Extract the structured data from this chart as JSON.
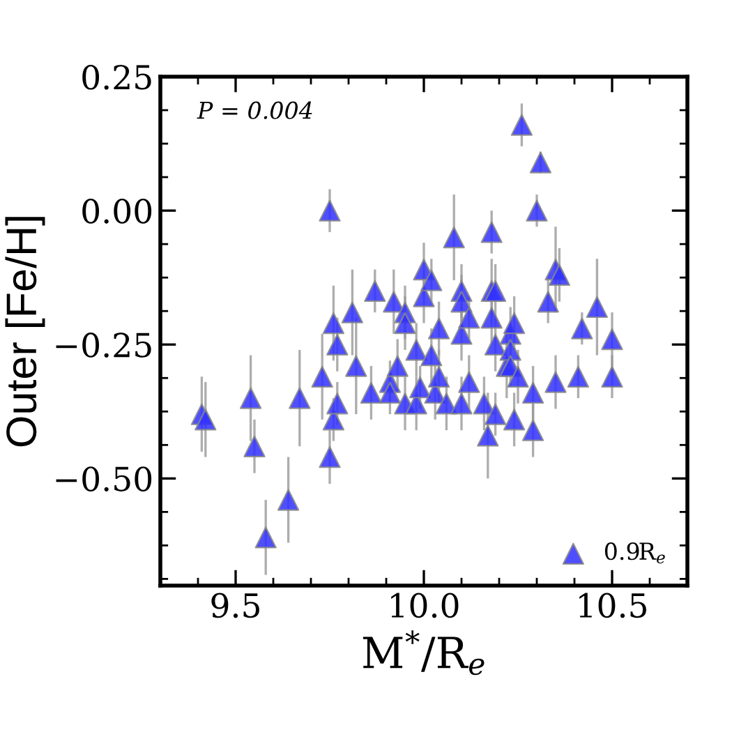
{
  "chart_data": {
    "type": "scatter",
    "xlabel": "M$^{*}$/R$_{e}$",
    "ylabel": "Outer [Fe/H]",
    "annotations": [
      "P = 0.004"
    ],
    "xlim": [
      9.3,
      10.7
    ],
    "ylim": [
      -0.7,
      0.25
    ],
    "xticks": [
      {
        "value": 9.4,
        "label": null
      },
      {
        "value": 9.5,
        "label": "9.5"
      },
      {
        "value": 9.6,
        "label": null
      },
      {
        "value": 9.7,
        "label": null
      },
      {
        "value": 9.8,
        "label": null
      },
      {
        "value": 9.9,
        "label": null
      },
      {
        "value": 10.0,
        "label": "10.0"
      },
      {
        "value": 10.1,
        "label": null
      },
      {
        "value": 10.2,
        "label": null
      },
      {
        "value": 10.3,
        "label": null
      },
      {
        "value": 10.4,
        "label": null
      },
      {
        "value": 10.5,
        "label": "10.5"
      },
      {
        "value": 10.6,
        "label": null
      }
    ],
    "yticks": [
      {
        "value": -0.6875,
        "label": null
      },
      {
        "value": -0.625,
        "label": null
      },
      {
        "value": -0.5625,
        "label": null
      },
      {
        "value": -0.5,
        "label": "−0.50"
      },
      {
        "value": -0.4375,
        "label": null
      },
      {
        "value": -0.375,
        "label": null
      },
      {
        "value": -0.3125,
        "label": null
      },
      {
        "value": -0.25,
        "label": "−0.25"
      },
      {
        "value": -0.1875,
        "label": null
      },
      {
        "value": -0.125,
        "label": null
      },
      {
        "value": -0.0625,
        "label": null
      },
      {
        "value": 0.0,
        "label": "0.00"
      },
      {
        "value": 0.0625,
        "label": null
      },
      {
        "value": 0.125,
        "label": null
      },
      {
        "value": 0.1875,
        "label": null
      },
      {
        "value": 0.25,
        "label": "0.25"
      }
    ],
    "grid": false,
    "legend": "bottom right",
    "marker": "triangle",
    "series": [
      {
        "name": "0.9R$_{e}$",
        "color": "#3030ff",
        "x": [
          9.41,
          9.42,
          9.54,
          9.55,
          9.58,
          9.64,
          9.67,
          9.73,
          9.75,
          9.75,
          9.76,
          9.76,
          9.77,
          9.77,
          9.81,
          9.82,
          9.86,
          9.87,
          9.91,
          9.91,
          9.92,
          9.93,
          9.95,
          9.95,
          9.95,
          9.98,
          9.98,
          9.99,
          10.0,
          10.0,
          10.02,
          10.02,
          10.03,
          10.04,
          10.04,
          10.06,
          10.08,
          10.1,
          10.1,
          10.1,
          10.1,
          10.12,
          10.12,
          10.16,
          10.17,
          10.18,
          10.18,
          10.18,
          10.19,
          10.19,
          10.19,
          10.22,
          10.23,
          10.23,
          10.23,
          10.24,
          10.24,
          10.25,
          10.26,
          10.29,
          10.29,
          10.3,
          10.31,
          10.33,
          10.35,
          10.35,
          10.36,
          10.42,
          10.41,
          10.46,
          10.5,
          10.5
        ],
        "values": [
          -0.38,
          -0.39,
          -0.35,
          -0.44,
          -0.61,
          -0.54,
          -0.35,
          -0.31,
          -0.46,
          0.0,
          -0.39,
          -0.21,
          -0.36,
          -0.25,
          -0.19,
          -0.29,
          -0.34,
          -0.15,
          -0.32,
          -0.34,
          -0.17,
          -0.29,
          -0.19,
          -0.21,
          -0.36,
          -0.36,
          -0.26,
          -0.33,
          -0.11,
          -0.16,
          -0.13,
          -0.27,
          -0.34,
          -0.22,
          -0.31,
          -0.36,
          -0.05,
          -0.15,
          -0.17,
          -0.23,
          -0.36,
          -0.2,
          -0.32,
          -0.36,
          -0.42,
          -0.04,
          -0.15,
          -0.2,
          -0.15,
          -0.25,
          -0.38,
          -0.29,
          -0.23,
          -0.26,
          -0.29,
          -0.21,
          -0.39,
          -0.31,
          0.16,
          -0.34,
          -0.41,
          0.0,
          0.09,
          -0.17,
          -0.32,
          -0.11,
          -0.12,
          -0.22,
          -0.31,
          -0.18,
          -0.24,
          -0.31
        ],
        "errors": [
          0.07,
          0.07,
          0.08,
          0.05,
          0.07,
          0.08,
          0.09,
          0.08,
          0.05,
          0.04,
          0.04,
          0.07,
          0.04,
          0.05,
          0.08,
          0.09,
          0.05,
          0.04,
          0.04,
          0.04,
          0.06,
          0.05,
          0.05,
          0.05,
          0.05,
          0.05,
          0.05,
          0.04,
          0.05,
          0.05,
          0.04,
          0.05,
          0.05,
          0.05,
          0.05,
          0.05,
          0.08,
          0.05,
          0.05,
          0.05,
          0.05,
          0.04,
          0.05,
          0.05,
          0.08,
          0.04,
          0.06,
          0.05,
          0.05,
          0.05,
          0.04,
          0.06,
          0.05,
          0.05,
          0.04,
          0.05,
          0.05,
          0.05,
          0.04,
          0.05,
          0.05,
          0.03,
          0.02,
          0.04,
          0.05,
          0.08,
          0.05,
          0.03,
          0.04,
          0.09,
          0.05,
          0.04
        ]
      }
    ]
  }
}
